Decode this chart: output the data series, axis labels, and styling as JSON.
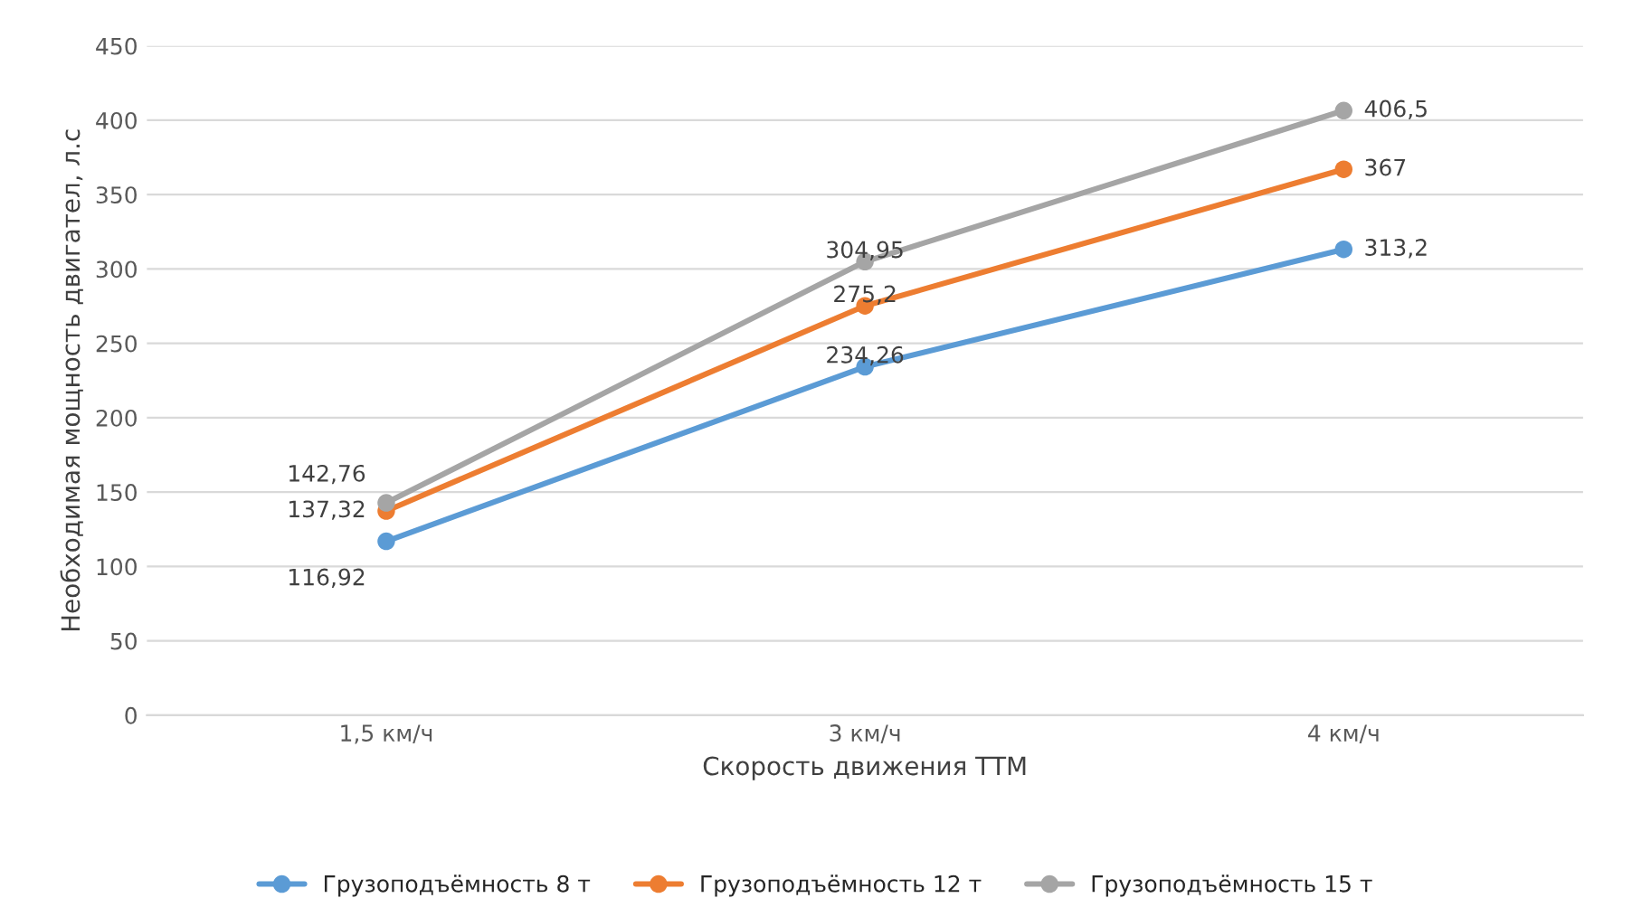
{
  "chart_data": {
    "type": "line",
    "xlabel": "Скорость движения ТТМ",
    "ylabel": "Необходимая мощность двигател, л.с",
    "categories": [
      "1,5 км/ч",
      "3 км/ч",
      "4 км/ч"
    ],
    "series": [
      {
        "name": "Грузоподъёмность 8 т",
        "color": "#5b9bd5",
        "values": [
          116.92,
          234.26,
          313.2
        ],
        "value_labels": [
          "116,92",
          "234,26",
          "313,2"
        ]
      },
      {
        "name": "Грузоподъёмность 12 т",
        "color": "#ed7d31",
        "values": [
          137.32,
          275.2,
          367
        ],
        "value_labels": [
          "137,32",
          "275,2",
          "367"
        ]
      },
      {
        "name": "Грузоподъёмность 15 т",
        "color": "#a5a5a5",
        "values": [
          142.76,
          304.95,
          406.5
        ],
        "value_labels": [
          "142,76",
          "304,95",
          "406,5"
        ]
      }
    ],
    "ylim": [
      0,
      450
    ],
    "yticks": [
      0,
      50,
      100,
      150,
      200,
      250,
      300,
      350,
      400,
      450
    ],
    "grid": "y",
    "legend": "bottom",
    "marker": "circle",
    "line_style": "solid"
  }
}
